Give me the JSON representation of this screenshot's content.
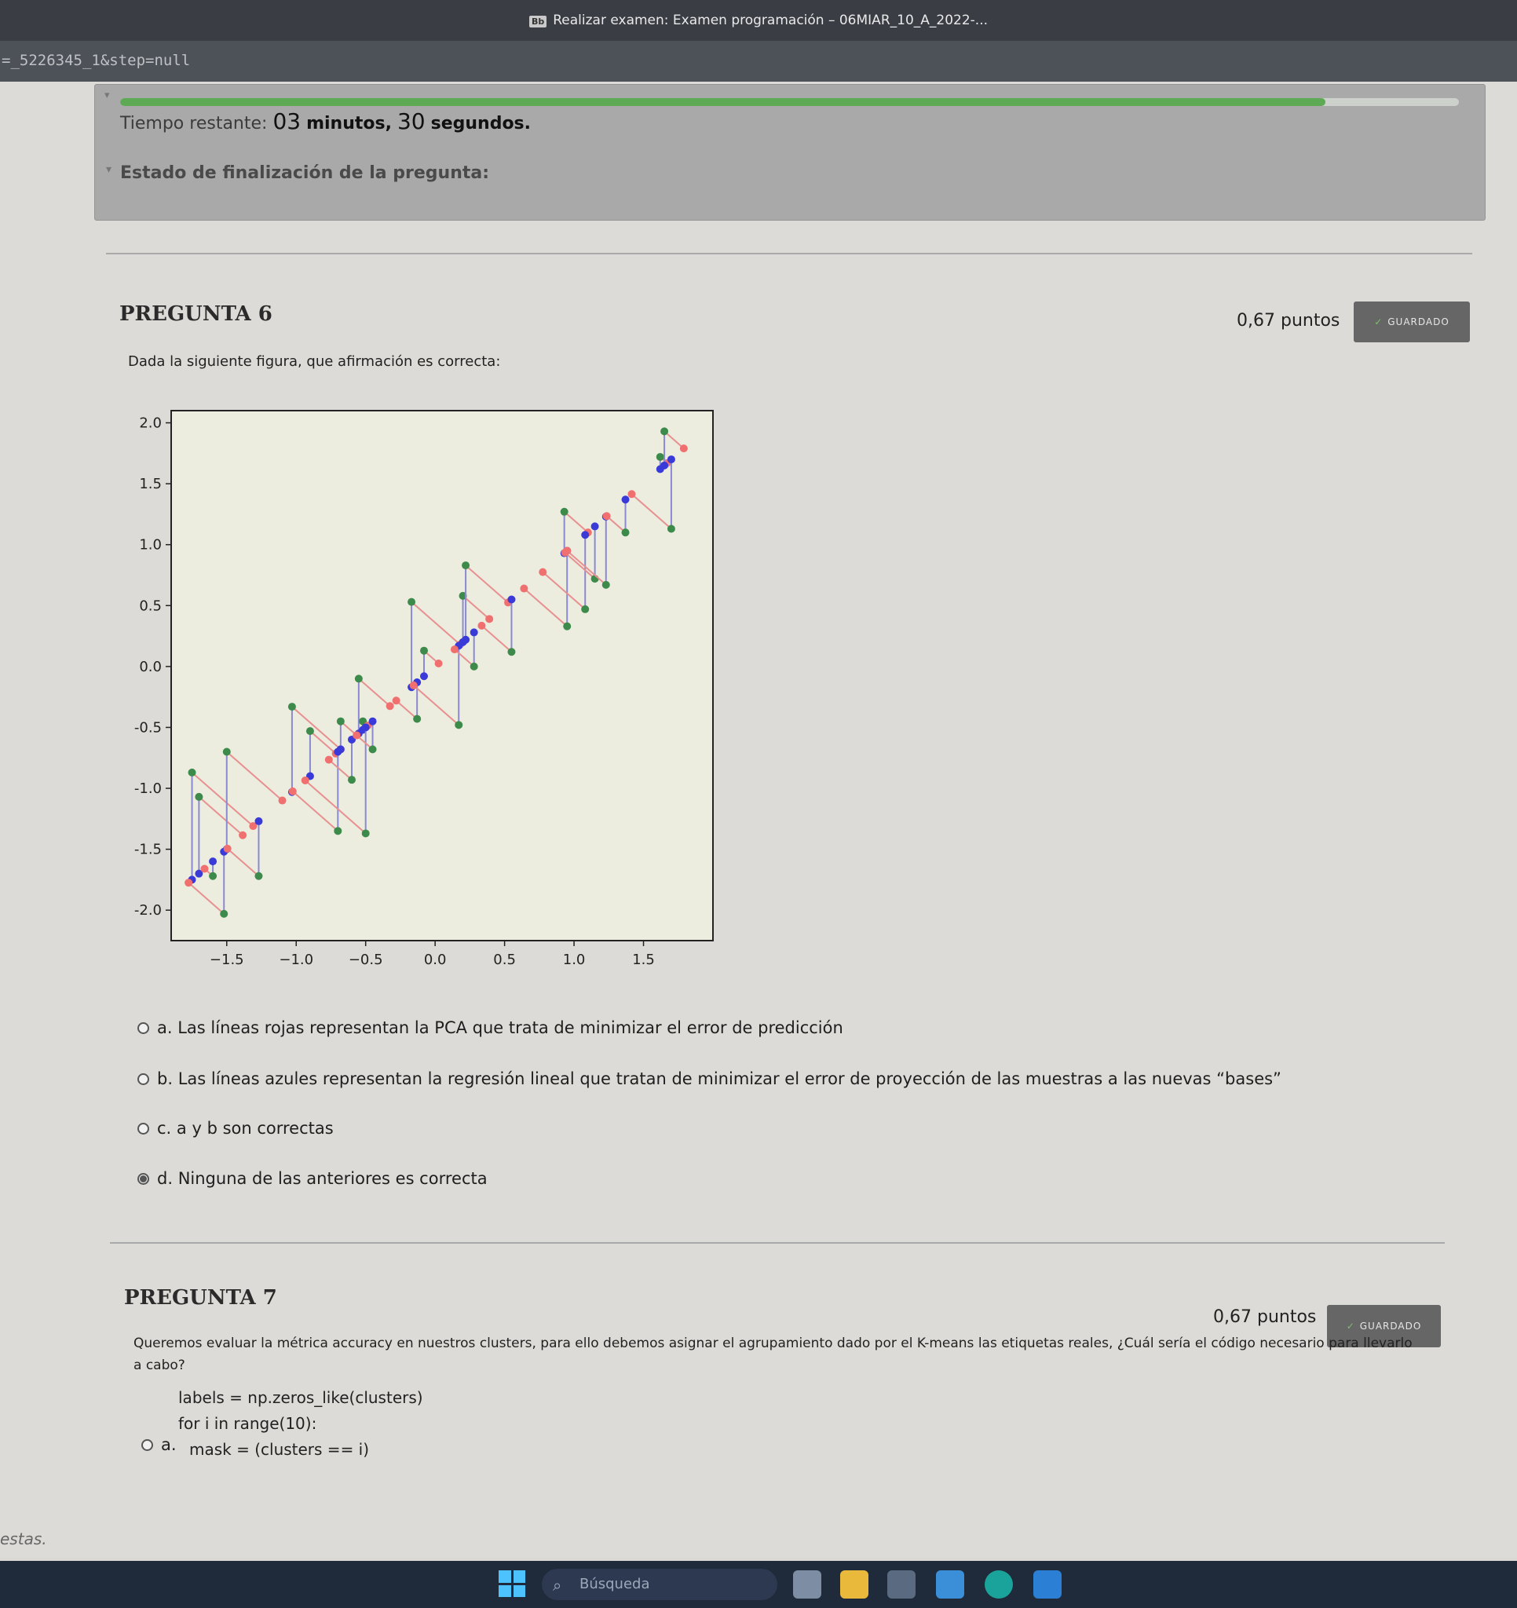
{
  "window": {
    "title": "Realizar examen: Examen programación – 06MIAR_10_A_2022-...",
    "badge": "Bb"
  },
  "url": {
    "fragment": "=_5226345_1&step=null"
  },
  "timer": {
    "label": "Tiempo restante:",
    "minutes": "03",
    "minutes_word": "minutos,",
    "seconds": "30",
    "seconds_word": "segundos.",
    "progress_fraction": 0.9,
    "status_label": "Estado de finalización de la pregunta:"
  },
  "q6": {
    "title": "PREGUNTA 6",
    "points": "0,67 puntos",
    "saved": "GUARDADO",
    "prompt": "Dada la siguiente figura, que afirmación es correcta:",
    "options": [
      {
        "letter": "a.",
        "text": "Las líneas rojas representan la PCA que trata de minimizar el error de predicción",
        "selected": false
      },
      {
        "letter": "b.",
        "text": "Las líneas azules representan la regresión lineal que tratan de minimizar el error de proyección de las muestras a las nuevas “bases”",
        "selected": false
      },
      {
        "letter": "c.",
        "text": "a y b son correctas",
        "selected": false
      },
      {
        "letter": "d.",
        "text": "Ninguna de las anteriores es correcta",
        "selected": true
      }
    ]
  },
  "chart_data": {
    "type": "scatter",
    "xlim": [
      -1.9,
      2.0
    ],
    "ylim": [
      -2.25,
      2.1
    ],
    "xticks": [
      -1.5,
      -1.0,
      -0.5,
      0.0,
      0.5,
      1.0,
      1.5
    ],
    "xtick_labels": [
      "−1.5",
      "−1.0",
      "−0.5",
      "0.0",
      "0.5",
      "1.0",
      "1.5"
    ],
    "yticks": [
      2.0,
      1.5,
      1.0,
      0.5,
      0.0,
      -0.5,
      -1.0,
      -1.5,
      -2.0
    ],
    "ytick_labels": [
      "2.0",
      "1.5",
      "1.0",
      "0.5",
      "0.0",
      "-0.5",
      "-1.0",
      "-1.5",
      "-2.0"
    ],
    "grid": false,
    "series_colors": {
      "original": "#3d8b4a",
      "regression": "#3a3ad8",
      "pca": "#f07070",
      "overlap": "#c02030"
    },
    "samples": [
      {
        "x": -1.75,
        "y": -0.87
      },
      {
        "x": -1.7,
        "y": -1.07
      },
      {
        "x": -1.6,
        "y": -1.72
      },
      {
        "x": -1.5,
        "y": -0.7
      },
      {
        "x": -1.52,
        "y": -2.03
      },
      {
        "x": -1.27,
        "y": -1.72
      },
      {
        "x": -1.03,
        "y": -0.33
      },
      {
        "x": -0.9,
        "y": -0.53
      },
      {
        "x": -0.7,
        "y": -1.35
      },
      {
        "x": -0.68,
        "y": -0.45
      },
      {
        "x": -0.6,
        "y": -0.93
      },
      {
        "x": -0.55,
        "y": -0.1
      },
      {
        "x": -0.52,
        "y": -0.45
      },
      {
        "x": -0.5,
        "y": -1.37
      },
      {
        "x": -0.45,
        "y": -0.68
      },
      {
        "x": -0.17,
        "y": 0.53
      },
      {
        "x": -0.13,
        "y": -0.43
      },
      {
        "x": -0.08,
        "y": 0.13
      },
      {
        "x": 0.17,
        "y": -0.48
      },
      {
        "x": 0.2,
        "y": 0.58
      },
      {
        "x": 0.22,
        "y": 0.83
      },
      {
        "x": 0.28,
        "y": 0.0
      },
      {
        "x": 0.55,
        "y": 0.12
      },
      {
        "x": 0.95,
        "y": 0.33
      },
      {
        "x": 0.93,
        "y": 1.27
      },
      {
        "x": 1.08,
        "y": 0.47
      },
      {
        "x": 1.15,
        "y": 0.72
      },
      {
        "x": 1.23,
        "y": 0.67
      },
      {
        "x": 1.37,
        "y": 1.1
      },
      {
        "x": 1.62,
        "y": 1.72
      },
      {
        "x": 1.65,
        "y": 1.93
      },
      {
        "x": 1.7,
        "y": 1.13
      }
    ]
  },
  "q7": {
    "title": "PREGUNTA 7",
    "points": "0,67 puntos",
    "saved": "GUARDADO",
    "prompt": "Queremos evaluar la métrica accuracy en nuestros clusters, para ello debemos asignar el agrupamiento dado por el K-means las etiquetas reales, ¿Cuál sería el código necesario para llevarlo a cabo?",
    "option_a_letter": "a.",
    "code_lines": [
      "labels = np.zeros_like(clusters)",
      "for i in range(10):",
      "  mask = (clusters == i)"
    ]
  },
  "footer_text": "estas.",
  "taskbar": {
    "search_placeholder": "Búsqueda",
    "search_icon": "magnifier-icon",
    "start_icon": "windows-logo-icon"
  }
}
